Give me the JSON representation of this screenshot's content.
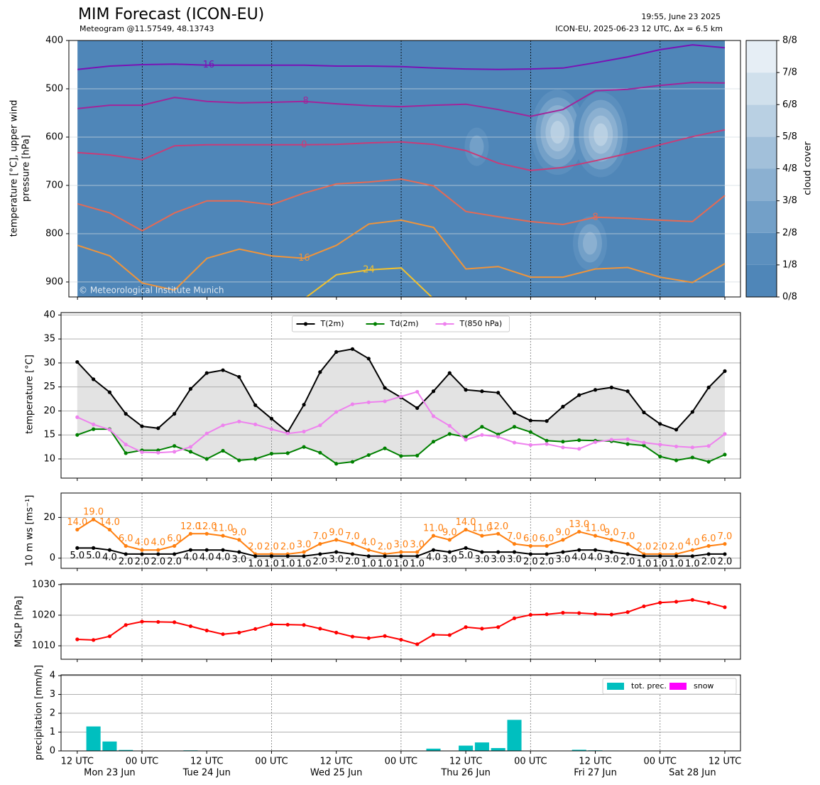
{
  "chart_data": [
    {
      "type": "contour",
      "title": "MIM Forecast (ICON-EU)",
      "subtitle": "Meteogram @11.57549, 48.13743",
      "info": [
        "19:55, June 23 2025",
        "ICON-EU, 2025-06-23 12 UTC, Δx = 6.5 km"
      ],
      "ylabel": [
        "temperature [°C], upper wind",
        "pressure [hPa]"
      ],
      "copyright": "© Meteorological Institute Munich",
      "x": [
        0,
        6,
        12,
        18,
        24,
        30,
        36,
        42,
        48,
        54,
        60,
        66,
        72,
        78,
        84,
        90,
        96,
        102,
        108,
        114,
        120
      ],
      "xlim": [
        -1.6,
        122.9
      ],
      "xticks": [
        0,
        12,
        24,
        36,
        48,
        60,
        72,
        84,
        96,
        108,
        120
      ],
      "ylim": [
        931,
        400
      ],
      "yticks": [
        400,
        500,
        600,
        700,
        800,
        900
      ],
      "grid": true,
      "day_lines": true,
      "contours": [
        {
          "level": -16,
          "color": "#7a12b5",
          "values": [
            460,
            453,
            450,
            449,
            451,
            451,
            451,
            451,
            453,
            453,
            454,
            457,
            459,
            460,
            459,
            457,
            446,
            434,
            419,
            409,
            415
          ]
        },
        {
          "level": -8,
          "color": "#a2259a",
          "values": [
            541,
            534,
            534,
            518,
            526,
            529,
            528,
            526,
            531,
            535,
            537,
            534,
            532,
            543,
            557,
            543,
            504,
            501,
            493,
            487,
            488
          ]
        },
        {
          "level": 0,
          "color": "#c83c78",
          "values": [
            632,
            637,
            647,
            618,
            616,
            616,
            616,
            616,
            615,
            612,
            610,
            615,
            628,
            654,
            669,
            663,
            649,
            634,
            616,
            599,
            585
          ]
        },
        {
          "level": 8,
          "color": "#e46a55",
          "values": [
            738,
            757,
            794,
            757,
            732,
            732,
            740,
            716,
            697,
            693,
            687,
            701,
            754,
            765,
            775,
            781,
            766,
            768,
            772,
            775,
            721
          ]
        },
        {
          "level": 16,
          "color": "#f0943a",
          "values": [
            824,
            846,
            902,
            917,
            851,
            832,
            846,
            851,
            824,
            780,
            772,
            787,
            873,
            868,
            890,
            890,
            873,
            870,
            890,
            901,
            862
          ]
        },
        {
          "level": 24,
          "color": "#f2c12e",
          "values": [
            null,
            null,
            null,
            null,
            null,
            null,
            null,
            935,
            885,
            875,
            871,
            935,
            null,
            null,
            null,
            null,
            null,
            null,
            null,
            null,
            null
          ]
        }
      ],
      "cloud_cover": {
        "label": "cloud cover",
        "colors": [
          "#4f86b8",
          "#5b8fbe",
          "#73a0c8",
          "#8bb0d1",
          "#a2c0da",
          "#b9d0e3",
          "#d0e0ec",
          "#e6eef5",
          "#f5f9fc"
        ],
        "ticks": [
          {
            "value": 0,
            "label": "0/8"
          },
          {
            "value": 1,
            "label": "1/8"
          },
          {
            "value": 2,
            "label": "2/8"
          },
          {
            "value": 3,
            "label": "3/8"
          },
          {
            "value": 4,
            "label": "4/8"
          },
          {
            "value": 5,
            "label": "5/8"
          },
          {
            "value": 6,
            "label": "6/8"
          },
          {
            "value": 7,
            "label": "7/8"
          },
          {
            "value": 8,
            "label": "8/8"
          }
        ],
        "cells": [
          {
            "x": 74,
            "p": 620,
            "value": 2
          },
          {
            "x": 89,
            "p": 590,
            "value": 5
          },
          {
            "x": 97,
            "p": 595,
            "value": 5
          },
          {
            "x": 95,
            "p": 820,
            "value": 3
          }
        ]
      }
    },
    {
      "type": "line",
      "ylabel": "temperature [°C]",
      "x": [
        0,
        3,
        6,
        9,
        12,
        15,
        18,
        21,
        24,
        27,
        30,
        33,
        36,
        39,
        42,
        45,
        48,
        51,
        54,
        57,
        60,
        63,
        66,
        69,
        72,
        75,
        78,
        81,
        84,
        87,
        90,
        93,
        96,
        99,
        102,
        105,
        108,
        111,
        114,
        117,
        120
      ],
      "xlim": [
        -3.0,
        122.9
      ],
      "xticks": [
        0,
        12,
        24,
        36,
        48,
        60,
        72,
        84,
        96,
        108,
        120
      ],
      "ylim": [
        6,
        40.5
      ],
      "yticks": [
        10,
        15,
        20,
        25,
        30,
        35,
        40
      ],
      "grid": true,
      "day_lines": true,
      "legend": "upper center",
      "fill_between": [
        0,
        1
      ],
      "fill_color": "#e3e3e3",
      "series": [
        {
          "name": "T(2m)",
          "color": "#000000",
          "values": [
            30.2,
            26.6,
            23.9,
            19.4,
            16.8,
            16.4,
            19.4,
            24.6,
            27.9,
            28.5,
            27.1,
            21.2,
            18.4,
            15.6,
            21.3,
            28.1,
            32.3,
            32.9,
            30.9,
            24.8,
            22.8,
            20.6,
            24.1,
            27.9,
            24.4,
            24.1,
            23.8,
            19.6,
            18.0,
            17.9,
            20.9,
            23.3,
            24.4,
            24.9,
            24.1,
            19.7,
            17.3,
            16.1,
            19.8,
            24.9,
            28.3
          ]
        },
        {
          "name": "Td(2m)",
          "color": "#008000",
          "values": [
            15.0,
            16.2,
            16.2,
            11.2,
            11.8,
            11.8,
            12.7,
            11.5,
            10.0,
            11.7,
            9.7,
            10.0,
            11.1,
            11.2,
            12.5,
            11.3,
            9.0,
            9.4,
            10.8,
            12.2,
            10.6,
            10.7,
            13.6,
            15.2,
            14.6,
            16.7,
            15.1,
            16.7,
            15.6,
            13.8,
            13.6,
            13.9,
            13.8,
            13.7,
            13.1,
            12.8,
            10.5,
            9.7,
            10.3,
            9.4,
            10.9
          ]
        },
        {
          "name": "T(850 hPa)",
          "color": "#ee82ee",
          "values": [
            18.7,
            17.2,
            16.1,
            13.0,
            11.4,
            11.3,
            11.5,
            12.5,
            15.3,
            17.0,
            17.8,
            17.2,
            16.2,
            15.3,
            15.7,
            17.0,
            19.8,
            21.4,
            21.8,
            22.0,
            23.0,
            24.0,
            18.9,
            16.9,
            14.0,
            15.0,
            14.6,
            13.4,
            12.9,
            13.1,
            12.4,
            12.1,
            13.5,
            14.0,
            14.1,
            13.4,
            13.0,
            12.6,
            12.4,
            12.7,
            15.2
          ]
        }
      ]
    },
    {
      "type": "line",
      "ylabel": "10 m ws [ms⁻¹]",
      "x": [
        0,
        3,
        6,
        9,
        12,
        15,
        18,
        21,
        24,
        27,
        30,
        33,
        36,
        39,
        42,
        45,
        48,
        51,
        54,
        57,
        60,
        63,
        66,
        69,
        72,
        75,
        78,
        81,
        84,
        87,
        90,
        93,
        96,
        99,
        102,
        105,
        108,
        111,
        114,
        117,
        120
      ],
      "xlim": [
        -3.0,
        122.9
      ],
      "xticks": [
        0,
        12,
        24,
        36,
        48,
        60,
        72,
        84,
        96,
        108,
        120
      ],
      "ylim": [
        -5,
        32
      ],
      "yticks": [
        0,
        20
      ],
      "grid": true,
      "day_lines": true,
      "series": [
        {
          "color": "#ff7f0e",
          "values": [
            14,
            19,
            14,
            6,
            4,
            4,
            6,
            12,
            12,
            11,
            9,
            2,
            2,
            2,
            3,
            7,
            9,
            7,
            4,
            2,
            3,
            3,
            11,
            9,
            14,
            11,
            12,
            7,
            6,
            6,
            9,
            13,
            11,
            9,
            7,
            2,
            2,
            2,
            4,
            6,
            7
          ],
          "value_labels": [
            "14.0",
            "19.0",
            "14.0",
            "6.0",
            "4.0",
            "4.0",
            "6.0",
            "12.0",
            "12.0",
            "11.0",
            "9.0",
            "2.0",
            "2.0",
            "2.0",
            "3.0",
            "7.0",
            "9.0",
            "7.0",
            "4.0",
            "2.0",
            "3.0",
            "3.0",
            "11.0",
            "9.0",
            "14.0",
            "11.0",
            "12.0",
            "7.0",
            "6.0",
            "6.0",
            "9.0",
            "13.0",
            "11.0",
            "9.0",
            "7.0",
            "2.0",
            "2.0",
            "2.0",
            "4.0",
            "6.0",
            "7.0"
          ]
        },
        {
          "color": "#000000",
          "values": [
            5,
            5,
            4,
            2,
            2,
            2,
            2,
            4,
            4,
            4,
            3,
            1,
            1,
            1,
            1,
            2,
            3,
            2,
            1,
            1,
            1,
            1,
            4,
            3,
            5,
            3,
            3,
            3,
            2,
            2,
            3,
            4,
            4,
            3,
            2,
            1,
            1,
            1,
            1,
            2,
            2
          ],
          "value_labels": [
            "5.0",
            "5.0",
            "4.0",
            "2.0",
            "2.0",
            "2.0",
            "2.0",
            "4.0",
            "4.0",
            "4.0",
            "3.0",
            "1.0",
            "1.0",
            "1.0",
            "1.0",
            "2.0",
            "3.0",
            "2.0",
            "1.0",
            "1.0",
            "1.0",
            "1.0",
            "4.0",
            "3.0",
            "5.0",
            "3.0",
            "3.0",
            "3.0",
            "2.0",
            "2.0",
            "3.0",
            "4.0",
            "4.0",
            "3.0",
            "2.0",
            "1.0",
            "1.0",
            "1.0",
            "1.0",
            "2.0",
            "2.0"
          ]
        }
      ]
    },
    {
      "type": "line",
      "ylabel": "MSLP [hPa]",
      "x": [
        0,
        3,
        6,
        9,
        12,
        15,
        18,
        21,
        24,
        27,
        30,
        33,
        36,
        39,
        42,
        45,
        48,
        51,
        54,
        57,
        60,
        63,
        66,
        69,
        72,
        75,
        78,
        81,
        84,
        87,
        90,
        93,
        96,
        99,
        102,
        105,
        108,
        111,
        114,
        117,
        120
      ],
      "xlim": [
        -3.0,
        122.9
      ],
      "xticks": [
        0,
        12,
        24,
        36,
        48,
        60,
        72,
        84,
        96,
        108,
        120
      ],
      "ylim": [
        1005.6,
        1030.2
      ],
      "yticks": [
        1010,
        1020,
        1030
      ],
      "grid": true,
      "day_lines": true,
      "series": [
        {
          "color": "#ff0000",
          "values": [
            1012.1,
            1011.9,
            1013.1,
            1016.8,
            1017.9,
            1017.8,
            1017.7,
            1016.4,
            1015.0,
            1013.8,
            1014.3,
            1015.5,
            1017.0,
            1016.9,
            1016.8,
            1015.6,
            1014.3,
            1013.0,
            1012.5,
            1013.2,
            1012.0,
            1010.5,
            1013.6,
            1013.5,
            1016.1,
            1015.6,
            1016.1,
            1019.0,
            1020.1,
            1020.3,
            1020.8,
            1020.7,
            1020.4,
            1020.2,
            1021.0,
            1022.9,
            1024.1,
            1024.4,
            1025.0,
            1024.0,
            1022.6
          ]
        }
      ]
    },
    {
      "type": "bar",
      "ylabel": "precipitation [mm/h]",
      "x": [
        0,
        3,
        6,
        9,
        12,
        15,
        18,
        21,
        24,
        27,
        30,
        33,
        36,
        39,
        42,
        45,
        48,
        51,
        54,
        57,
        60,
        63,
        66,
        69,
        72,
        75,
        78,
        81,
        84,
        87,
        90,
        93,
        96,
        99,
        102,
        105,
        108,
        111,
        114,
        117,
        120
      ],
      "xlim": [
        -3.0,
        122.9
      ],
      "xticks": [
        {
          "value": 0,
          "label": "12 UTC"
        },
        {
          "value": 12,
          "label": "00 UTC"
        },
        {
          "value": 24,
          "label": "12 UTC"
        },
        {
          "value": 36,
          "label": "00 UTC"
        },
        {
          "value": 48,
          "label": "12 UTC"
        },
        {
          "value": 60,
          "label": "00 UTC"
        },
        {
          "value": 72,
          "label": "12 UTC"
        },
        {
          "value": 84,
          "label": "00 UTC"
        },
        {
          "value": 96,
          "label": "12 UTC"
        },
        {
          "value": 108,
          "label": "00 UTC"
        },
        {
          "value": 120,
          "label": "12 UTC"
        }
      ],
      "xdates": [
        {
          "value": 6,
          "label": "Mon 23 Jun"
        },
        {
          "value": 24,
          "label": "Tue 24 Jun"
        },
        {
          "value": 48,
          "label": "Wed 25 Jun"
        },
        {
          "value": 72,
          "label": "Thu 26 Jun"
        },
        {
          "value": 96,
          "label": "Fri 27 Jun"
        },
        {
          "value": 114,
          "label": "Sat 28 Jun"
        }
      ],
      "ylim": [
        0,
        4.04
      ],
      "yticks": [
        0,
        1,
        2,
        3,
        4
      ],
      "grid": true,
      "day_lines": true,
      "legend": "upper right",
      "series": [
        {
          "name": "tot. prec.",
          "color": "#00bfbf",
          "values": [
            0,
            1.3,
            0.5,
            0.05,
            0,
            0,
            0,
            0.03,
            0,
            0,
            0,
            0,
            0,
            0,
            0,
            0,
            0,
            0,
            0,
            0,
            0,
            0,
            0.12,
            0,
            0.28,
            0.45,
            0.15,
            1.65,
            0,
            0,
            0,
            0.06,
            0.03,
            0.02,
            0,
            0,
            0,
            0,
            0,
            0,
            0
          ]
        },
        {
          "name": "snow",
          "color": "#ff00ff",
          "values": [
            0,
            0,
            0,
            0,
            0,
            0,
            0,
            0,
            0,
            0,
            0,
            0,
            0,
            0,
            0,
            0,
            0,
            0,
            0,
            0,
            0,
            0,
            0,
            0,
            0,
            0,
            0,
            0,
            0,
            0,
            0,
            0,
            0,
            0,
            0,
            0,
            0,
            0,
            0,
            0,
            0
          ]
        }
      ]
    }
  ]
}
